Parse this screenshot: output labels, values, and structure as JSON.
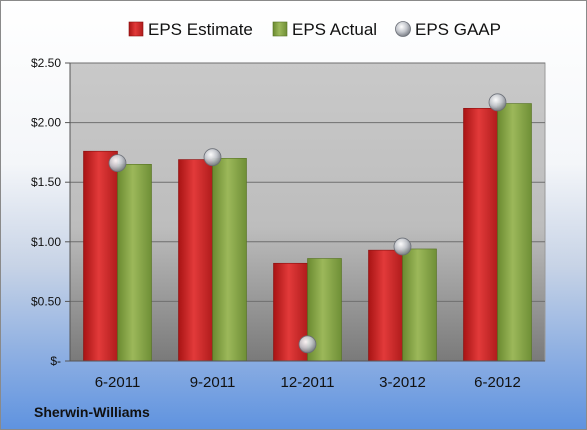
{
  "chart_data": {
    "type": "bar",
    "company": "Sherwin-Williams",
    "categories": [
      "6-2011",
      "9-2011",
      "12-2011",
      "3-2012",
      "6-2012"
    ],
    "series": [
      {
        "name": "EPS Estimate",
        "kind": "bar",
        "color": "#d42a2a",
        "values": [
          1.76,
          1.69,
          0.82,
          0.93,
          2.12
        ]
      },
      {
        "name": "EPS Actual",
        "kind": "bar",
        "color": "#8aa64a",
        "values": [
          1.65,
          1.7,
          0.86,
          0.94,
          2.16
        ]
      },
      {
        "name": "EPS GAAP",
        "kind": "marker",
        "color": "#b8bcc4",
        "values": [
          1.66,
          1.71,
          0.14,
          0.96,
          2.17
        ]
      }
    ],
    "ylim": [
      0,
      2.5
    ],
    "yticks": [
      {
        "value": 0,
        "label": "$-"
      },
      {
        "value": 0.5,
        "label": "$0.50"
      },
      {
        "value": 1.0,
        "label": "$1.00"
      },
      {
        "value": 1.5,
        "label": "$1.50"
      },
      {
        "value": 2.0,
        "label": "$2.00"
      },
      {
        "value": 2.5,
        "label": "$2.50"
      }
    ],
    "grid": true,
    "legend": "top"
  }
}
